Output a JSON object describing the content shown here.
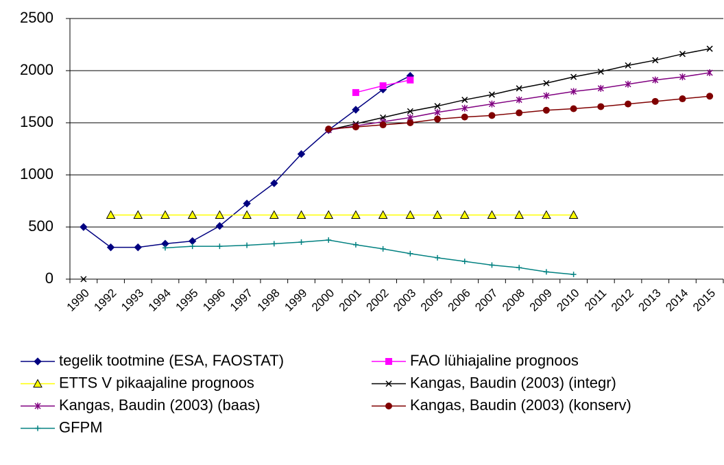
{
  "chart_data": {
    "type": "line",
    "categories": [
      "1990",
      "1992",
      "1993",
      "1994",
      "1995",
      "1996",
      "1997",
      "1998",
      "1999",
      "2000",
      "2001",
      "2002",
      "2003",
      "2005",
      "2006",
      "2007",
      "2008",
      "2009",
      "2010",
      "2011",
      "2012",
      "2013",
      "2014",
      "2015"
    ],
    "ylim": [
      0,
      2500
    ],
    "yticks": [
      0,
      500,
      1000,
      1500,
      2000,
      2500
    ],
    "grid": true,
    "legend": "bottom",
    "series": [
      {
        "name": "tegelik tootmine (ESA, FAOSTAT)",
        "color": "#000080",
        "marker": "diamond",
        "values": [
          500,
          305,
          305,
          340,
          365,
          510,
          725,
          920,
          1200,
          1430,
          1625,
          1820,
          1950,
          null,
          null,
          null,
          null,
          null,
          null,
          null,
          null,
          null,
          null,
          null
        ]
      },
      {
        "name": "FAO lühiajaline prognoos",
        "color": "#ff00ff",
        "marker": "square",
        "values": [
          null,
          null,
          null,
          null,
          null,
          null,
          null,
          null,
          null,
          null,
          1790,
          1855,
          1910,
          null,
          null,
          null,
          null,
          null,
          null,
          null,
          null,
          null,
          null,
          null
        ]
      },
      {
        "name": "ETTS V pikaajaline prognoos",
        "color": "#ffff00",
        "marker": "triangle",
        "values": [
          null,
          615,
          615,
          615,
          615,
          615,
          615,
          615,
          615,
          615,
          615,
          615,
          615,
          615,
          615,
          615,
          615,
          615,
          615,
          null,
          null,
          null,
          null,
          null
        ]
      },
      {
        "name": "Kangas, Baudin (2003) (integr)",
        "color": "#000000",
        "marker": "x",
        "values": [
          0,
          null,
          null,
          null,
          null,
          null,
          null,
          null,
          null,
          1430,
          1490,
          1550,
          1610,
          1660,
          1720,
          1770,
          1830,
          1880,
          1940,
          1990,
          2050,
          2100,
          2160,
          2210
        ]
      },
      {
        "name": "Kangas, Baudin (2003) (baas)",
        "color": "#800080",
        "marker": "star",
        "values": [
          null,
          null,
          null,
          null,
          null,
          null,
          null,
          null,
          null,
          1430,
          1470,
          1510,
          1550,
          1600,
          1640,
          1680,
          1720,
          1760,
          1800,
          1830,
          1870,
          1910,
          1940,
          1980
        ]
      },
      {
        "name": "Kangas, Baudin (2003) (konserv)",
        "color": "#800000",
        "marker": "circle",
        "values": [
          null,
          null,
          null,
          null,
          null,
          null,
          null,
          null,
          null,
          1440,
          1460,
          1480,
          1500,
          1535,
          1555,
          1570,
          1595,
          1620,
          1635,
          1655,
          1680,
          1705,
          1730,
          1755
        ]
      },
      {
        "name": "GFPM",
        "color": "#008080",
        "marker": "plus",
        "values": [
          null,
          null,
          null,
          300,
          315,
          315,
          325,
          340,
          355,
          375,
          330,
          290,
          245,
          205,
          170,
          135,
          110,
          70,
          45,
          null,
          null,
          null,
          null,
          null
        ]
      }
    ]
  }
}
